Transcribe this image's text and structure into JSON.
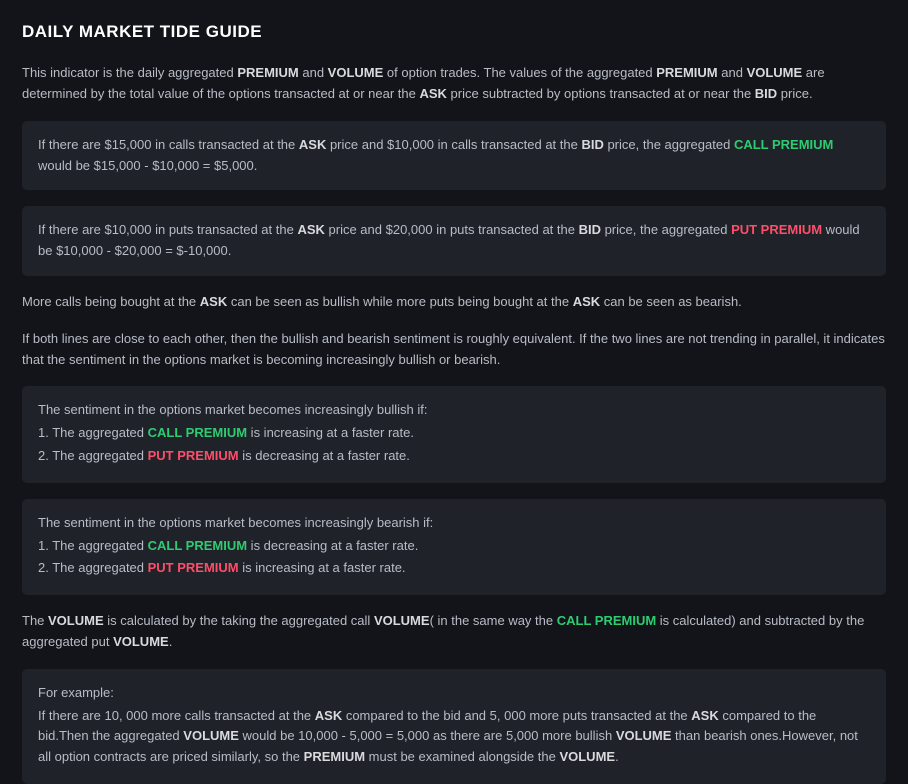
{
  "colors": {
    "background": "#121419",
    "box_bg": "#1f2229",
    "text": "#b8bcc6",
    "bold_text": "#d8dade",
    "title": "#ffffff",
    "call": "#2ecc71",
    "put": "#ff4d6a"
  },
  "title": "DAILY MARKET TIDE GUIDE",
  "intro": {
    "t1": "This indicator is the daily aggregated ",
    "b1": "PREMIUM",
    "t2": " and ",
    "b2": "VOLUME",
    "t3": " of option trades. The values of the aggregated ",
    "b3": "PREMIUM",
    "t4": " and ",
    "b4": "VOLUME",
    "t5": " are determined by the total value of the options transacted at or near the ",
    "b5": "ASK",
    "t6": " price subtracted by options transacted at or near the ",
    "b6": "BID",
    "t7": " price."
  },
  "box1": {
    "t1": "If there are $15,000 in calls transacted at the ",
    "b1": "ASK",
    "t2": " price and $10,000 in calls transacted at the ",
    "b2": "BID",
    "t3": " price, the aggregated ",
    "c1": "CALL PREMIUM",
    "t4": " would be $15,000 - $10,000 = $5,000."
  },
  "box2": {
    "t1": "If there are $10,000 in puts transacted at the ",
    "b1": "ASK",
    "t2": " price and $20,000 in puts transacted at the ",
    "b2": "BID",
    "t3": " price, the aggregated ",
    "p1": "PUT PREMIUM",
    "t4": " would be $10,000 - $20,000 = $-10,000."
  },
  "para2": {
    "t1": "More calls being bought at the ",
    "b1": "ASK",
    "t2": " can be seen as bullish while more puts being bought at the ",
    "b2": "ASK",
    "t3": " can be seen as bearish."
  },
  "para3": "If both lines are close to each other, then the bullish and bearish sentiment is roughly equivalent. If the two lines are not trending in parallel, it indicates that the sentiment in the options market is becoming increasingly bullish or bearish.",
  "box3": {
    "l1": "The sentiment in the options market becomes increasingly bullish if:",
    "l2a": "1. The aggregated ",
    "l2c": "CALL PREMIUM",
    "l2b": " is increasing at a faster rate.",
    "l3a": "2. The aggregated ",
    "l3p": "PUT PREMIUM",
    "l3b": " is decreasing at a faster rate."
  },
  "box4": {
    "l1": "The sentiment in the options market becomes increasingly bearish if:",
    "l2a": "1. The aggregated ",
    "l2c": "CALL PREMIUM",
    "l2b": " is decreasing at a faster rate.",
    "l3a": "2. The aggregated ",
    "l3p": "PUT PREMIUM",
    "l3b": " is increasing at a faster rate."
  },
  "para4": {
    "t1": "The ",
    "b1": "VOLUME",
    "t2": " is calculated by the taking the aggregated call ",
    "b2": "VOLUME",
    "t3": "( in the same way the ",
    "c1": "CALL PREMIUM",
    "t4": " is calculated) and subtracted by the aggregated put ",
    "b3": "VOLUME",
    "t5": "."
  },
  "box5": {
    "l1": "For example:",
    "t1": "If there are 10, 000 more calls transacted at the ",
    "b1": "ASK",
    "t2": " compared to the bid and 5, 000 more puts transacted at the ",
    "b2": "ASK",
    "t3": " compared to the bid.Then the aggregated ",
    "b3": "VOLUME",
    "t4": " would be 10,000 - 5,000 = 5,000 as there are 5,000 more bullish ",
    "b4": "VOLUME",
    "t5": " than bearish ones.However, not all option contracts are priced similarly, so the ",
    "b5": "PREMIUM",
    "t6": " must be examined alongside the ",
    "b6": "VOLUME",
    "t7": "."
  }
}
